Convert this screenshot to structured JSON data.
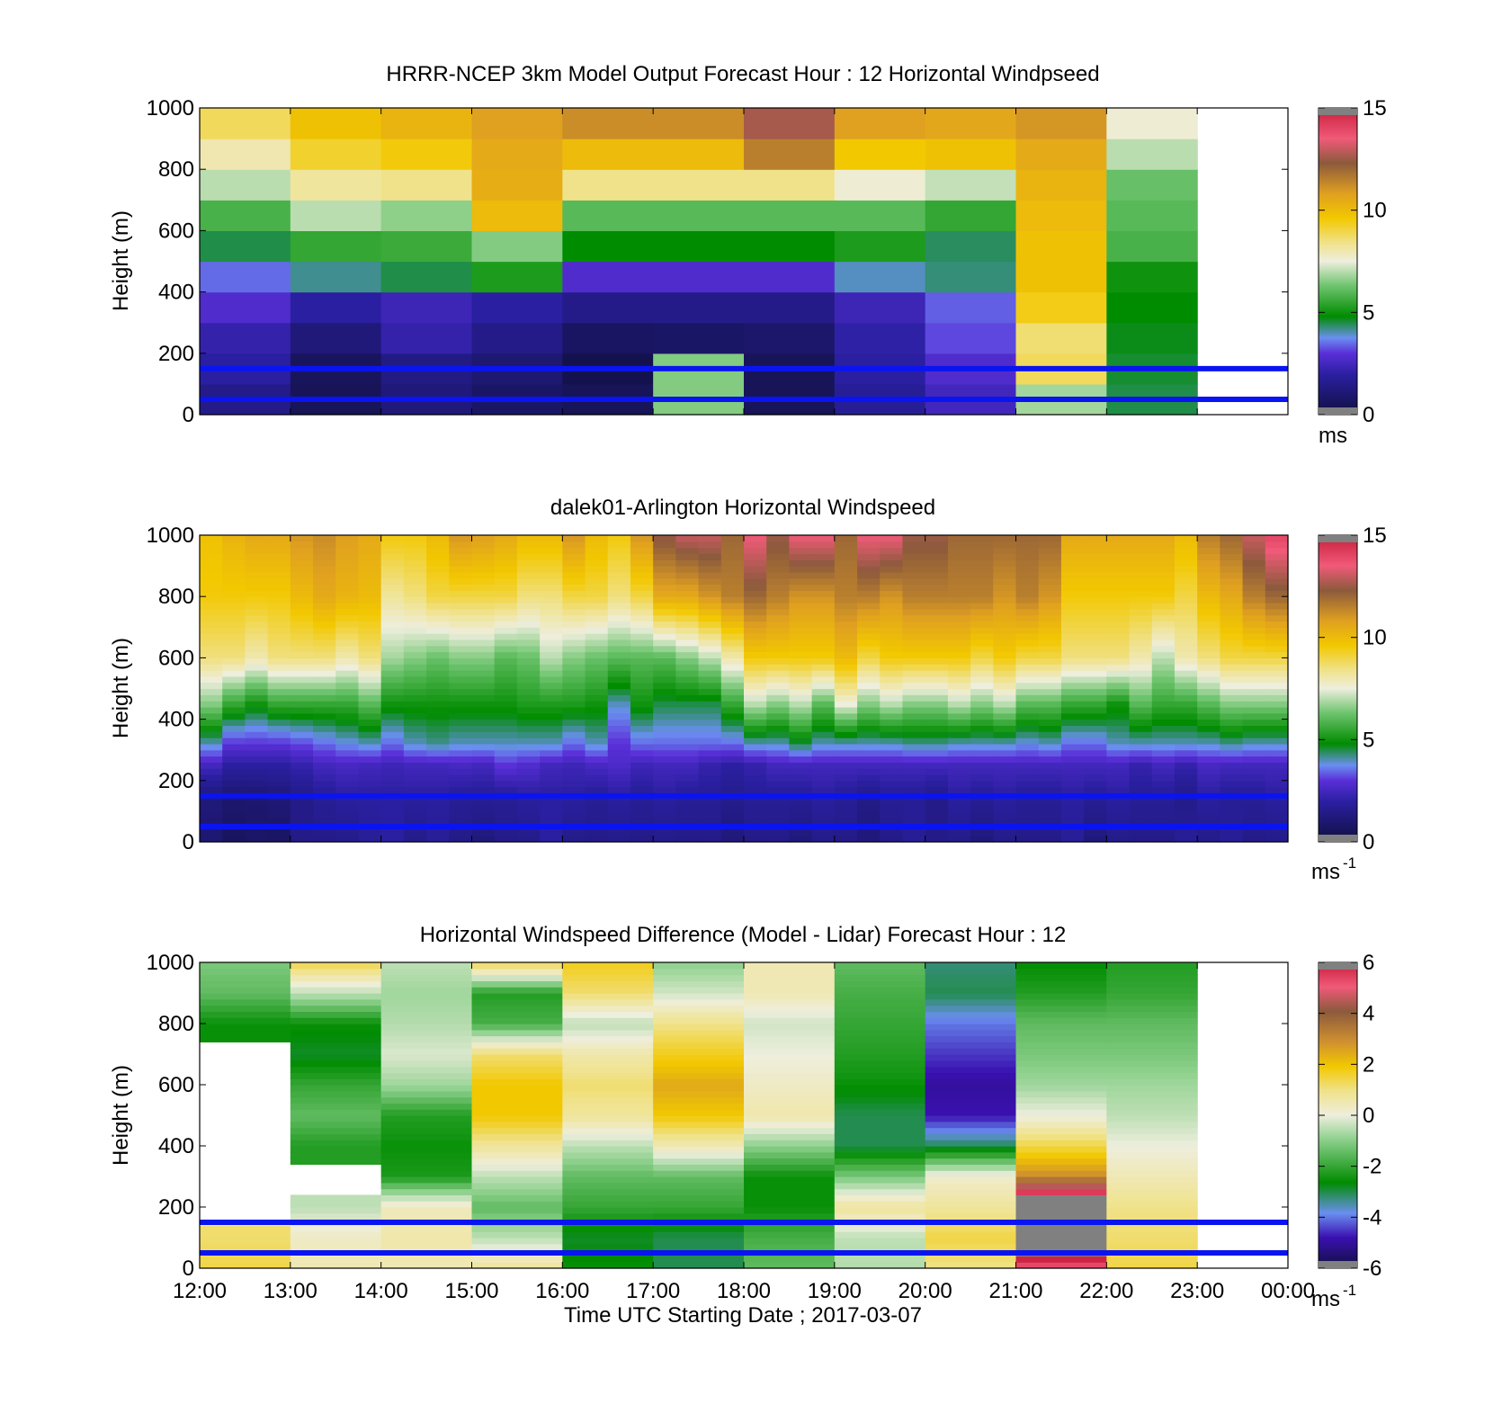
{
  "chart_data": [
    {
      "type": "heatmap",
      "title": "HRRR-NCEP 3km Model Output   Forecast Hour : 12 Horizontal Windpseed",
      "ylabel": "Height (m)",
      "ylim": [
        0,
        1000
      ],
      "yticks": [
        "0",
        "200",
        "400",
        "600",
        "800",
        "1000"
      ],
      "xlim": [
        "12:00",
        "00:00"
      ],
      "colorbar": {
        "min": 0,
        "max": 15,
        "ticks": [
          "0",
          "5",
          "10",
          "15"
        ],
        "unit": "ms",
        "unit_sup": ""
      },
      "reference_heights_m": [
        50,
        150
      ],
      "cell_height_m": 100,
      "columns": [
        {
          "start": "12:00",
          "end": "13:00",
          "speeds": [
            1.5,
            2.0,
            2.2,
            2.8,
            3.5,
            4.5,
            5.8,
            7.0,
            8.0,
            8.8
          ]
        },
        {
          "start": "13:00",
          "end": "14:00",
          "speeds": [
            0.5,
            0.6,
            1.2,
            2.0,
            4.2,
            5.5,
            7.0,
            8.2,
            9.2,
            9.8
          ]
        },
        {
          "start": "14:00",
          "end": "15:00",
          "speeds": [
            1.2,
            1.4,
            2.2,
            2.4,
            4.5,
            5.6,
            6.6,
            8.4,
            9.5,
            10.2
          ]
        },
        {
          "start": "15:00",
          "end": "16:00",
          "speeds": [
            0.8,
            1.0,
            1.5,
            2.0,
            5.2,
            6.5,
            10.0,
            10.4,
            10.5,
            10.8
          ]
        },
        {
          "start": "16:00",
          "end": "17:00",
          "speeds": [
            0.5,
            0.3,
            0.7,
            1.5,
            2.8,
            4.8,
            6.0,
            8.4,
            10.0,
            11.2
          ]
        },
        {
          "start": "17:00",
          "end": "18:00",
          "speeds": [
            6.5,
            6.5,
            0.8,
            1.5,
            2.8,
            4.8,
            6.0,
            8.4,
            10.0,
            11.2
          ]
        },
        {
          "start": "18:00",
          "end": "19:00",
          "speeds": [
            0.5,
            0.5,
            0.9,
            1.5,
            2.8,
            4.8,
            6.0,
            8.4,
            11.5,
            12.6
          ]
        },
        {
          "start": "19:00",
          "end": "20:00",
          "speeds": [
            1.8,
            2.0,
            2.1,
            2.4,
            4.0,
            5.2,
            6.0,
            7.6,
            9.6,
            10.8
          ]
        },
        {
          "start": "20:00",
          "end": "21:00",
          "speeds": [
            2.5,
            2.8,
            3.2,
            3.4,
            4.3,
            4.4,
            5.5,
            7.1,
            9.8,
            10.6
          ]
        },
        {
          "start": "21:00",
          "end": "22:00",
          "speeds": [
            6.8,
            8.8,
            8.6,
            9.4,
            9.8,
            9.8,
            10.0,
            10.2,
            10.5,
            11.0
          ]
        },
        {
          "start": "22:00",
          "end": "23:00",
          "speeds": [
            4.5,
            4.6,
            4.7,
            4.8,
            5.0,
            5.8,
            6.0,
            6.2,
            7.0,
            7.6
          ]
        }
      ]
    },
    {
      "type": "heatmap",
      "title": "dalek01-Arlington  Horizontal Windspeed",
      "ylabel": "Height (m)",
      "ylim": [
        0,
        1000
      ],
      "yticks": [
        "0",
        "200",
        "400",
        "600",
        "800",
        "1000"
      ],
      "xlim": [
        "12:00",
        "00:00"
      ],
      "colorbar": {
        "min": 0,
        "max": 15,
        "ticks": [
          "0",
          "5",
          "10",
          "15"
        ],
        "unit": "ms",
        "unit_sup": "-1"
      },
      "reference_heights_m": [
        50,
        150
      ],
      "column_minutes": 15,
      "profile_breakpoints_m": [
        0,
        150,
        250,
        320,
        450,
        600,
        800,
        1000
      ],
      "columns": [
        [
          1.0,
          1.2,
          2.5,
          4.0,
          6.5,
          8.5,
          9.5,
          9.8
        ],
        [
          0.6,
          1.0,
          2.0,
          3.0,
          5.5,
          8.5,
          9.5,
          10.2
        ],
        [
          0.8,
          1.0,
          2.0,
          3.0,
          5.0,
          8.0,
          9.5,
          10.5
        ],
        [
          0.7,
          1.2,
          2.0,
          3.0,
          5.5,
          8.5,
          9.5,
          10.5
        ],
        [
          1.5,
          1.5,
          2.2,
          3.2,
          5.5,
          8.5,
          10.0,
          11.0
        ],
        [
          1.5,
          1.8,
          2.5,
          3.5,
          5.5,
          8.5,
          10.5,
          11.2
        ],
        [
          1.5,
          2.0,
          2.6,
          3.8,
          5.5,
          8.0,
          10.2,
          10.8
        ],
        [
          1.8,
          2.0,
          2.5,
          4.0,
          6.0,
          8.5,
          10.0,
          10.5
        ],
        [
          2.0,
          2.0,
          2.4,
          3.5,
          5.0,
          6.8,
          8.2,
          9.5
        ],
        [
          1.5,
          2.0,
          2.5,
          4.0,
          5.0,
          6.5,
          8.5,
          9.5
        ],
        [
          1.8,
          2.0,
          2.5,
          4.2,
          5.0,
          6.2,
          9.0,
          10.0
        ],
        [
          1.5,
          1.8,
          2.6,
          4.0,
          5.0,
          6.5,
          9.0,
          11.0
        ],
        [
          1.2,
          1.8,
          2.5,
          4.0,
          5.0,
          6.5,
          9.0,
          10.8
        ],
        [
          1.5,
          1.8,
          3.0,
          4.0,
          5.0,
          6.0,
          9.0,
          10.5
        ],
        [
          1.5,
          2.0,
          2.8,
          4.0,
          5.2,
          6.2,
          8.5,
          10.0
        ],
        [
          2.0,
          2.0,
          2.5,
          4.0,
          5.2,
          7.0,
          8.5,
          10.0
        ],
        [
          1.5,
          2.0,
          2.4,
          3.5,
          5.2,
          6.5,
          9.0,
          11.0
        ],
        [
          1.5,
          1.8,
          2.6,
          4.0,
          5.0,
          6.2,
          9.0,
          10.0
        ],
        [
          1.5,
          2.0,
          2.7,
          3.0,
          4.0,
          6.0,
          8.5,
          9.5
        ],
        [
          1.5,
          1.8,
          2.4,
          3.5,
          5.0,
          6.0,
          9.0,
          11.0
        ],
        [
          1.5,
          2.0,
          2.5,
          3.5,
          4.5,
          6.0,
          10.5,
          12.5
        ],
        [
          1.5,
          1.8,
          2.5,
          3.5,
          4.5,
          6.5,
          10.5,
          13.0
        ],
        [
          1.5,
          1.8,
          2.2,
          3.5,
          4.5,
          7.0,
          11.0,
          13.0
        ],
        [
          1.2,
          1.6,
          2.0,
          3.5,
          5.5,
          8.0,
          11.5,
          12.0
        ],
        [
          1.5,
          1.8,
          2.2,
          4.0,
          7.0,
          9.5,
          12.0,
          13.5
        ],
        [
          1.5,
          1.8,
          2.5,
          4.0,
          6.5,
          9.5,
          11.5,
          12.5
        ],
        [
          1.2,
          1.8,
          2.5,
          4.5,
          7.0,
          9.5,
          11.0,
          13.5
        ],
        [
          1.5,
          2.0,
          2.5,
          4.0,
          6.0,
          9.5,
          11.0,
          13.5
        ],
        [
          1.5,
          1.8,
          2.5,
          4.0,
          7.5,
          10.0,
          11.5,
          12.0
        ],
        [
          1.2,
          1.5,
          2.5,
          4.0,
          6.5,
          9.0,
          11.5,
          13.5
        ],
        [
          1.5,
          1.8,
          2.5,
          4.0,
          7.0,
          9.5,
          11.0,
          13.5
        ],
        [
          1.8,
          1.8,
          2.5,
          4.2,
          6.5,
          9.5,
          11.5,
          12.5
        ],
        [
          1.5,
          1.5,
          2.5,
          4.2,
          6.5,
          9.5,
          11.5,
          12.5
        ],
        [
          1.5,
          2.0,
          2.5,
          4.0,
          7.0,
          9.5,
          11.5,
          12.0
        ],
        [
          1.2,
          1.8,
          2.5,
          4.0,
          6.5,
          9.0,
          11.5,
          12.0
        ],
        [
          1.5,
          2.0,
          2.5,
          4.0,
          7.0,
          9.5,
          11.0,
          12.0
        ],
        [
          1.5,
          1.8,
          2.5,
          3.8,
          6.0,
          9.0,
          11.5,
          12.0
        ],
        [
          1.5,
          1.8,
          2.5,
          4.0,
          6.0,
          9.0,
          11.0,
          12.0
        ],
        [
          1.8,
          2.0,
          2.5,
          3.5,
          5.5,
          8.5,
          9.5,
          10.5
        ],
        [
          1.2,
          1.8,
          2.5,
          3.5,
          5.5,
          8.5,
          9.5,
          10.5
        ],
        [
          1.5,
          2.0,
          2.5,
          4.0,
          5.0,
          8.5,
          9.5,
          10.5
        ],
        [
          1.5,
          1.8,
          2.2,
          4.0,
          6.0,
          8.0,
          9.5,
          10.5
        ],
        [
          1.5,
          1.8,
          2.5,
          4.0,
          5.5,
          7.0,
          9.5,
          10.5
        ],
        [
          1.8,
          1.5,
          2.2,
          4.0,
          5.5,
          8.0,
          9.0,
          10.0
        ],
        [
          1.5,
          2.0,
          2.6,
          4.0,
          6.0,
          8.5,
          10.0,
          11.5
        ],
        [
          1.8,
          1.8,
          2.5,
          4.2,
          6.5,
          9.0,
          10.5,
          12.0
        ],
        [
          1.5,
          1.8,
          2.5,
          4.0,
          6.5,
          9.0,
          11.5,
          13.0
        ],
        [
          1.5,
          2.0,
          2.5,
          4.0,
          6.5,
          9.0,
          12.0,
          14.0
        ]
      ]
    },
    {
      "type": "heatmap",
      "title": "Horizontal Windspeed Difference (Model - Lidar) Forecast Hour : 12",
      "ylabel": "Height (m)",
      "xlabel": "Time UTC  Starting Date ; 2017-03-07",
      "ylim": [
        0,
        1000
      ],
      "yticks": [
        "0",
        "200",
        "400",
        "600",
        "800",
        "1000"
      ],
      "xticks": [
        "12:00",
        "13:00",
        "14:00",
        "15:00",
        "16:00",
        "17:00",
        "18:00",
        "19:00",
        "20:00",
        "21:00",
        "22:00",
        "23:00",
        "00:00"
      ],
      "colorbar": {
        "min": -6,
        "max": 6,
        "ticks": [
          "-6",
          "-4",
          "-2",
          "0",
          "2",
          "4",
          "6"
        ],
        "unit": "ms",
        "unit_sup": "-1"
      },
      "reference_heights_m": [
        50,
        150
      ],
      "profile_breakpoints_m": [
        0,
        100,
        200,
        300,
        400,
        500,
        600,
        700,
        800,
        900,
        1000
      ],
      "columns": [
        {
          "start": "12:00",
          "end": "13:00",
          "diffs": [
            1.5,
            1.2,
            null,
            null,
            null,
            null,
            null,
            null,
            -2.5,
            -1.5,
            -1.2
          ]
        },
        {
          "start": "13:00",
          "end": "14:00",
          "diffs": [
            0.5,
            0.3,
            -0.5,
            null,
            -2.2,
            -1.5,
            -2.0,
            -2.8,
            -2.5,
            -0.5,
            1.5
          ]
        },
        {
          "start": "14:00",
          "end": "15:00",
          "diffs": [
            0.5,
            0.6,
            0.4,
            -2.3,
            -2.5,
            -2.2,
            -0.8,
            -0.2,
            -0.6,
            -0.8,
            -0.5
          ]
        },
        {
          "start": "15:00",
          "end": "16:00",
          "diffs": [
            0.8,
            -0.5,
            -1.5,
            -0.5,
            0.8,
            2.0,
            2.0,
            1.2,
            -1.8,
            -2.2,
            1.5
          ]
        },
        {
          "start": "16:00",
          "end": "17:00",
          "diffs": [
            -2.5,
            -2.8,
            -2.0,
            -1.5,
            -0.5,
            0.8,
            1.2,
            0.6,
            -0.5,
            1.2,
            1.8
          ]
        },
        {
          "start": "17:00",
          "end": "18:00",
          "diffs": [
            -3.0,
            -3.0,
            -2.0,
            -1.5,
            0.5,
            2.0,
            2.5,
            1.8,
            1.0,
            -0.3,
            -1.0
          ]
        },
        {
          "start": "18:00",
          "end": "19:00",
          "diffs": [
            -1.5,
            -1.8,
            -2.5,
            -2.5,
            -1.0,
            0.6,
            0.3,
            0.0,
            -0.3,
            0.5,
            0.5
          ]
        },
        {
          "start": "19:00",
          "end": "20:00",
          "diffs": [
            -0.6,
            -0.5,
            0.8,
            -1.2,
            -3.0,
            -3.0,
            -2.5,
            -2.2,
            -2.0,
            -1.8,
            -1.5
          ]
        },
        {
          "start": "20:00",
          "end": "21:00",
          "diffs": [
            1.0,
            1.5,
            0.8,
            0.2,
            -3.0,
            -4.8,
            -5.0,
            -4.5,
            -4.0,
            -3.0,
            -3.2
          ]
        },
        {
          "start": "21:00",
          "end": "22:00",
          "diffs": [
            5.0,
            8.0,
            8.0,
            3.0,
            1.5,
            0.0,
            -0.8,
            -1.2,
            -1.5,
            -2.2,
            -2.6
          ]
        },
        {
          "start": "22:00",
          "end": "23:00",
          "diffs": [
            1.5,
            1.2,
            1.0,
            0.5,
            0.0,
            -0.5,
            -0.8,
            -1.2,
            -1.5,
            -2.0,
            -2.2
          ]
        }
      ]
    }
  ]
}
